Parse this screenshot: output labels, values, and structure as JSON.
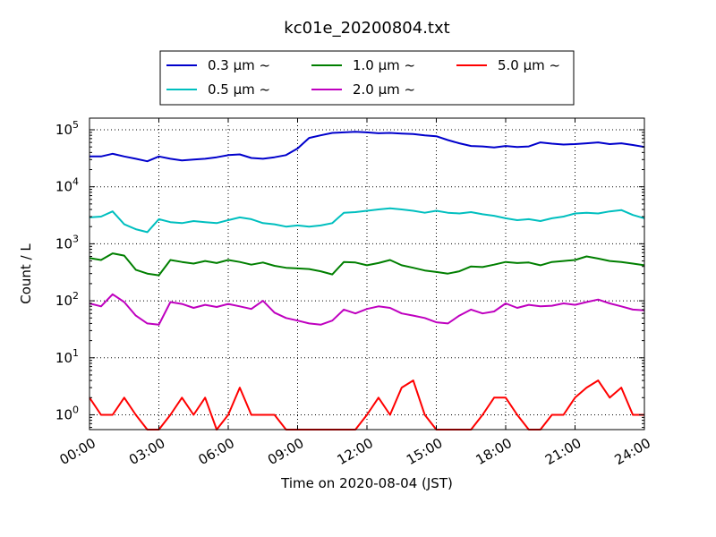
{
  "chart_data": {
    "type": "line",
    "title": "kc01e_20200804.txt",
    "xlabel": "Time on 2020-08-04 (JST)",
    "ylabel": "Count / L",
    "yscale": "log",
    "xlim": [
      "00:00",
      "24:00"
    ],
    "ylim": [
      0.55,
      160000
    ],
    "grid": true,
    "legend_position": "top",
    "x_tick_labels": [
      "00:00",
      "03:00",
      "06:00",
      "09:00",
      "12:00",
      "15:00",
      "18:00",
      "21:00",
      "24:00"
    ],
    "y_tick_labels": [
      {
        "base": "10",
        "exp": "0",
        "value": 1
      },
      {
        "base": "10",
        "exp": "1",
        "value": 10
      },
      {
        "base": "10",
        "exp": "2",
        "value": 100
      },
      {
        "base": "10",
        "exp": "3",
        "value": 1000
      },
      {
        "base": "10",
        "exp": "4",
        "value": 10000
      },
      {
        "base": "10",
        "exp": "5",
        "value": 100000
      }
    ],
    "series": [
      {
        "name": "0.3 μm  ~",
        "color": "#0000cc",
        "x": [
          "00:00",
          "00:30",
          "01:00",
          "01:30",
          "02:00",
          "02:30",
          "03:00",
          "03:30",
          "04:00",
          "04:30",
          "05:00",
          "05:30",
          "06:00",
          "06:30",
          "07:00",
          "07:30",
          "08:00",
          "08:30",
          "09:00",
          "09:30",
          "10:00",
          "10:30",
          "11:00",
          "11:30",
          "12:00",
          "12:30",
          "13:00",
          "13:30",
          "14:00",
          "14:30",
          "15:00",
          "15:30",
          "16:00",
          "16:30",
          "17:00",
          "17:30",
          "18:00",
          "18:30",
          "19:00",
          "19:30",
          "20:00",
          "20:30",
          "21:00",
          "21:30",
          "22:00",
          "22:30",
          "23:00",
          "23:30",
          "24:00"
        ],
        "values": [
          34000,
          34000,
          38000,
          34000,
          31000,
          28000,
          34000,
          31000,
          29000,
          30000,
          31000,
          33000,
          36000,
          37000,
          32000,
          31000,
          33000,
          36000,
          47000,
          72000,
          80000,
          88000,
          90000,
          92000,
          90000,
          87000,
          88000,
          86000,
          84000,
          80000,
          77000,
          66000,
          58000,
          52000,
          51000,
          49000,
          52000,
          50000,
          51000,
          60000,
          57000,
          55000,
          56000,
          58000,
          60000,
          56000,
          58000,
          54000,
          50000
        ]
      },
      {
        "name": "0.5 μm  ~",
        "color": "#00bfbf",
        "x": [
          "00:00",
          "00:30",
          "01:00",
          "01:30",
          "02:00",
          "02:30",
          "03:00",
          "03:30",
          "04:00",
          "04:30",
          "05:00",
          "05:30",
          "06:00",
          "06:30",
          "07:00",
          "07:30",
          "08:00",
          "08:30",
          "09:00",
          "09:30",
          "10:00",
          "10:30",
          "11:00",
          "11:30",
          "12:00",
          "12:30",
          "13:00",
          "13:30",
          "14:00",
          "14:30",
          "15:00",
          "15:30",
          "16:00",
          "16:30",
          "17:00",
          "17:30",
          "18:00",
          "18:30",
          "19:00",
          "19:30",
          "20:00",
          "20:30",
          "21:00",
          "21:30",
          "22:00",
          "22:30",
          "23:00",
          "23:30",
          "24:00"
        ],
        "values": [
          2900,
          3000,
          3700,
          2200,
          1800,
          1600,
          2700,
          2400,
          2300,
          2500,
          2400,
          2300,
          2600,
          2900,
          2700,
          2300,
          2200,
          2000,
          2100,
          2000,
          2100,
          2300,
          3500,
          3600,
          3800,
          4000,
          4200,
          4000,
          3800,
          3500,
          3800,
          3500,
          3400,
          3600,
          3300,
          3100,
          2800,
          2600,
          2700,
          2500,
          2800,
          3000,
          3400,
          3500,
          3400,
          3700,
          3900,
          3200,
          2800
        ]
      },
      {
        "name": "1.0 μm  ~",
        "color": "#007f00",
        "x": [
          "00:00",
          "00:30",
          "01:00",
          "01:30",
          "02:00",
          "02:30",
          "03:00",
          "03:30",
          "04:00",
          "04:30",
          "05:00",
          "05:30",
          "06:00",
          "06:30",
          "07:00",
          "07:30",
          "08:00",
          "08:30",
          "09:00",
          "09:30",
          "10:00",
          "10:30",
          "11:00",
          "11:30",
          "12:00",
          "12:30",
          "13:00",
          "13:30",
          "14:00",
          "14:30",
          "15:00",
          "15:30",
          "16:00",
          "16:30",
          "17:00",
          "17:30",
          "18:00",
          "18:30",
          "19:00",
          "19:30",
          "20:00",
          "20:30",
          "21:00",
          "21:30",
          "22:00",
          "22:30",
          "23:00",
          "23:30",
          "24:00"
        ],
        "values": [
          560,
          520,
          680,
          620,
          350,
          300,
          280,
          520,
          480,
          450,
          500,
          460,
          520,
          480,
          430,
          470,
          410,
          380,
          370,
          360,
          330,
          290,
          480,
          470,
          420,
          460,
          520,
          420,
          380,
          340,
          320,
          300,
          330,
          400,
          390,
          430,
          480,
          460,
          470,
          420,
          480,
          500,
          520,
          600,
          550,
          500,
          480,
          450,
          420
        ]
      },
      {
        "name": "2.0 μm  ~",
        "color": "#bf00bf",
        "x": [
          "00:00",
          "00:30",
          "01:00",
          "01:30",
          "02:00",
          "02:30",
          "03:00",
          "03:30",
          "04:00",
          "04:30",
          "05:00",
          "05:30",
          "06:00",
          "06:30",
          "07:00",
          "07:30",
          "08:00",
          "08:30",
          "09:00",
          "09:30",
          "10:00",
          "10:30",
          "11:00",
          "11:30",
          "12:00",
          "12:30",
          "13:00",
          "13:30",
          "14:00",
          "14:30",
          "15:00",
          "15:30",
          "16:00",
          "16:30",
          "17:00",
          "17:30",
          "18:00",
          "18:30",
          "19:00",
          "19:30",
          "20:00",
          "20:30",
          "21:00",
          "21:30",
          "22:00",
          "22:30",
          "23:00",
          "23:30",
          "24:00"
        ],
        "values": [
          90,
          80,
          130,
          95,
          55,
          40,
          38,
          95,
          88,
          75,
          85,
          78,
          88,
          80,
          72,
          100,
          62,
          50,
          45,
          40,
          38,
          45,
          70,
          60,
          72,
          80,
          75,
          60,
          55,
          50,
          42,
          40,
          55,
          70,
          60,
          65,
          90,
          75,
          85,
          80,
          82,
          90,
          85,
          95,
          105,
          90,
          80,
          70,
          68
        ]
      },
      {
        "name": "5.0 μm  ~",
        "color": "#ff0000",
        "x": [
          "00:00",
          "00:30",
          "01:00",
          "01:30",
          "02:00",
          "02:30",
          "03:00",
          "03:30",
          "04:00",
          "04:30",
          "05:00",
          "05:30",
          "06:00",
          "06:30",
          "07:00",
          "07:30",
          "08:00",
          "08:30",
          "09:00",
          "09:30",
          "10:00",
          "10:30",
          "11:00",
          "11:30",
          "12:00",
          "12:30",
          "13:00",
          "13:30",
          "14:00",
          "14:30",
          "15:00",
          "15:30",
          "16:00",
          "16:30",
          "17:00",
          "17:30",
          "18:00",
          "18:30",
          "19:00",
          "19:30",
          "20:00",
          "20:30",
          "21:00",
          "21:30",
          "22:00",
          "22:30",
          "23:00",
          "23:30",
          "24:00"
        ],
        "values": [
          2,
          1,
          1,
          2,
          1,
          0,
          0,
          1,
          2,
          1,
          2,
          0,
          1,
          3,
          1,
          1,
          1,
          0,
          0,
          0,
          0,
          0,
          0,
          0,
          1,
          2,
          1,
          3,
          4,
          1,
          0,
          0,
          0,
          0,
          1,
          2,
          2,
          1,
          0,
          0,
          1,
          1,
          2,
          3,
          4,
          2,
          3,
          1,
          1
        ]
      }
    ]
  }
}
